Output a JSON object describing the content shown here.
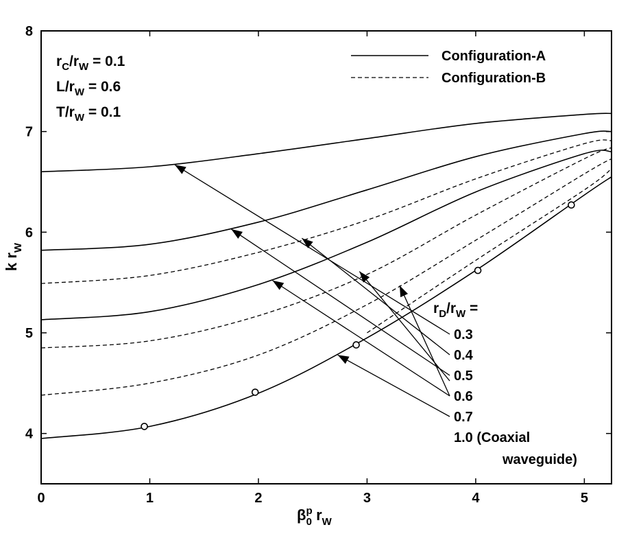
{
  "chart_data": {
    "type": "line",
    "xlim": [
      0,
      5.25
    ],
    "ylim": [
      3.5,
      8
    ],
    "xticks": [
      "0",
      "1",
      "2",
      "3",
      "4",
      "5"
    ],
    "yticks": [
      "4",
      "5",
      "6",
      "7",
      "8"
    ],
    "xlabel": {
      "main": "β",
      "sub": "0",
      "sup": "p",
      "tail": " r",
      "tail_sub": "W"
    },
    "ylabel": {
      "main": "k r",
      "sub": "W"
    },
    "params": [
      {
        "pre": "r",
        "sub1": "C",
        "mid": "/r",
        "sub2": "W",
        "post": " = 0.1"
      },
      {
        "pre": "L/r",
        "sub1": "",
        "mid": "",
        "sub2": "W",
        "post": " = 0.6"
      },
      {
        "pre": "T/r",
        "sub1": "",
        "mid": "",
        "sub2": "W",
        "post": " = 0.1"
      }
    ],
    "legend": [
      {
        "name": "Configuration-A",
        "dash": "solid"
      },
      {
        "name": "Configuration-B",
        "dash": "dashed"
      }
    ],
    "rd_header": {
      "pre": "r",
      "sub1": "D",
      "mid": "/r",
      "sub2": "W",
      "post": " ="
    },
    "rd_labels": [
      "0.3",
      "0.4",
      "0.5",
      "0.6",
      "0.7",
      "1.0 (Coaxial",
      "waveguide)"
    ],
    "series": [
      {
        "config": "A",
        "rd": "0.3",
        "x": [
          0,
          1,
          2,
          3,
          4,
          5,
          5.25
        ],
        "y": [
          6.6,
          6.65,
          6.78,
          6.93,
          7.08,
          7.17,
          7.18
        ]
      },
      {
        "config": "A",
        "rd": "0.5",
        "x": [
          0,
          1,
          2,
          3,
          4,
          5,
          5.25
        ],
        "y": [
          5.82,
          5.88,
          6.1,
          6.42,
          6.75,
          6.98,
          7.0
        ]
      },
      {
        "config": "A",
        "rd": "0.7",
        "x": [
          0,
          1,
          2,
          3,
          4,
          5,
          5.25
        ],
        "y": [
          5.13,
          5.21,
          5.48,
          5.9,
          6.4,
          6.78,
          6.8
        ]
      },
      {
        "config": "A",
        "rd": "1.0",
        "x": [
          0,
          1,
          2,
          3,
          4,
          5,
          5.25
        ],
        "y": [
          3.95,
          4.07,
          4.4,
          4.95,
          5.62,
          6.37,
          6.55
        ]
      },
      {
        "config": "B",
        "rd": "0.4",
        "x": [
          0,
          1,
          2,
          3,
          4,
          5,
          5.25
        ],
        "y": [
          5.49,
          5.57,
          5.8,
          6.12,
          6.53,
          6.88,
          6.91
        ]
      },
      {
        "config": "B",
        "rd": "0.5",
        "x": [
          0,
          1,
          2,
          3,
          4,
          5,
          5.25
        ],
        "y": [
          4.85,
          4.92,
          5.17,
          5.58,
          6.17,
          6.73,
          6.84
        ]
      },
      {
        "config": "B",
        "rd": "0.6",
        "x": [
          0,
          1,
          2,
          3,
          4,
          5,
          5.25
        ],
        "y": [
          4.38,
          4.5,
          4.78,
          5.28,
          5.92,
          6.58,
          6.73
        ]
      },
      {
        "config": "B",
        "rd": "0.7",
        "x": [
          0,
          1,
          2,
          3,
          4,
          5,
          5.25
        ],
        "y": [
          null,
          null,
          null,
          5.0,
          5.72,
          6.42,
          6.63
        ]
      }
    ],
    "markers": {
      "x": [
        0.95,
        1.97,
        2.9,
        4.02,
        4.88
      ],
      "y": [
        4.07,
        4.41,
        4.88,
        5.62,
        6.27
      ]
    },
    "arrows": [
      {
        "label": "0.3",
        "tip": [
          1.23,
          6.67
        ]
      },
      {
        "label": "0.4",
        "tip": [
          2.4,
          5.94
        ]
      },
      {
        "label": "0.5",
        "tip": [
          1.75,
          6.03
        ]
      },
      {
        "label": "0.5",
        "tip": [
          2.93,
          5.61
        ]
      },
      {
        "label": "0.6",
        "tip": [
          2.13,
          5.52
        ]
      },
      {
        "label": "0.6",
        "tip": [
          3.3,
          5.47
        ]
      },
      {
        "label": "0.7",
        "tip": [
          2.73,
          4.78
        ]
      }
    ]
  }
}
